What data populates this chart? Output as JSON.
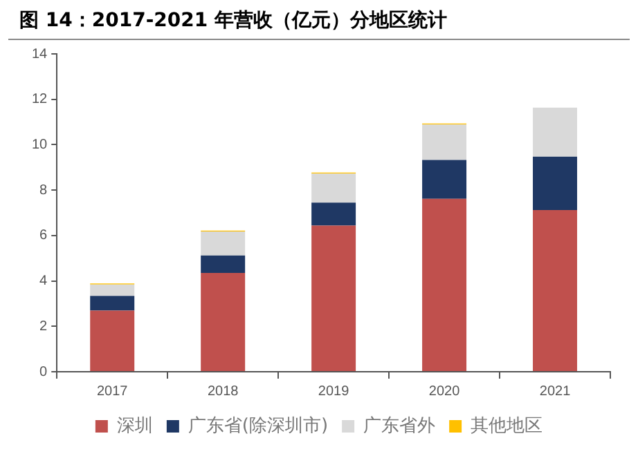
{
  "chart_data": {
    "type": "bar",
    "title": "图 14：2017-2021 年营收（亿元）分地区统计",
    "categories": [
      "2017",
      "2018",
      "2019",
      "2020",
      "2021"
    ],
    "stacked": true,
    "series": [
      {
        "name": "深圳",
        "color": "#c0504d",
        "values": [
          2.69,
          4.35,
          6.44,
          7.62,
          7.12
        ]
      },
      {
        "name": "广东省(除深圳市)",
        "color": "#1f3864",
        "values": [
          0.65,
          0.77,
          1.01,
          1.71,
          2.35
        ]
      },
      {
        "name": "广东省外",
        "color": "#d9d9d9",
        "values": [
          0.5,
          1.06,
          1.28,
          1.56,
          2.16
        ]
      },
      {
        "name": "其他地区",
        "color": "#ffc000",
        "values": [
          0.05,
          0.04,
          0.04,
          0.04,
          0
        ]
      }
    ],
    "ylim": [
      0,
      14
    ],
    "yticks": [
      0,
      2,
      4,
      6,
      8,
      10,
      12,
      14
    ],
    "grid": false,
    "legend": "bottom"
  }
}
